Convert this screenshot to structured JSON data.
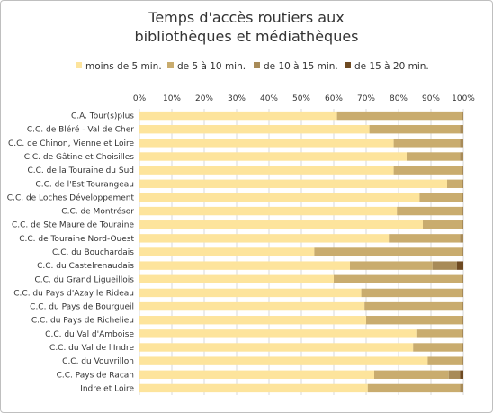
{
  "chart_data": {
    "type": "bar",
    "orientation": "horizontal",
    "stacked": "percent",
    "title_lines": [
      "Temps d'accès routiers aux",
      "bibliothèques et médiathèques"
    ],
    "xlim": [
      0,
      100
    ],
    "x_ticks": [
      "0%",
      "10%",
      "20%",
      "30%",
      "40%",
      "50%",
      "60%",
      "70%",
      "80%",
      "90%",
      "100%"
    ],
    "grid": true,
    "legend_position": "top",
    "categories": [
      "C.A. Tour(s)plus",
      "C.C. de Bléré - Val de Cher",
      "C.C. de Chinon, Vienne et Loire",
      "C.C. de Gâtine et Choisilles",
      "C.C. de la Touraine du Sud",
      "C.C. de l'Est Tourangeau",
      "C.C. de Loches Développement",
      "C.C. de Montrésor",
      "C.C. de Ste Maure de Touraine",
      "C.C. de Touraine Nord-Ouest",
      "C.C. du Bouchardais",
      "C.C. du Castelrenaudais",
      "C.C. du Grand Ligueillois",
      "C.C. du Pays d'Azay le Rideau",
      "C.C. du Pays de Bourgueil",
      "C.C. du Pays de Richelieu",
      "C.C. du Val d'Amboise",
      "C.C. du Val de l'Indre",
      "C.C. du Vouvrillon",
      "C.C. Pays de Racan",
      "Indre et Loire"
    ],
    "series": [
      {
        "name": "moins de 5 min.",
        "color": "#fde49c",
        "values": [
          61,
          71,
          78.5,
          82.5,
          78.5,
          95,
          86.5,
          79.5,
          87.5,
          77,
          54,
          65,
          60,
          68.5,
          69.5,
          70,
          85.5,
          84.5,
          89,
          72.5,
          70.5
        ]
      },
      {
        "name": "de 5 à 10 min.",
        "color": "#c9ac6e",
        "values": [
          38.5,
          28,
          20.5,
          16.5,
          21,
          4.5,
          13,
          20,
          12,
          22,
          45.5,
          25.5,
          39.5,
          31,
          30,
          29.5,
          14,
          15,
          10.5,
          23,
          28.5
        ]
      },
      {
        "name": "de 10 à 15 min.",
        "color": "#a88b58",
        "values": [
          0.5,
          1,
          1,
          1,
          0.5,
          0.5,
          0.5,
          0.5,
          0.5,
          1,
          0.5,
          7.5,
          0.5,
          0.5,
          0.5,
          0.5,
          0.5,
          0.5,
          0.5,
          3.5,
          1
        ]
      },
      {
        "name": "de 15 à 20 min.",
        "color": "#6e4a22",
        "values": [
          0,
          0,
          0,
          0,
          0,
          0,
          0,
          0,
          0,
          0,
          0,
          2,
          0,
          0,
          0,
          0,
          0,
          0,
          0,
          1,
          0
        ]
      }
    ]
  }
}
